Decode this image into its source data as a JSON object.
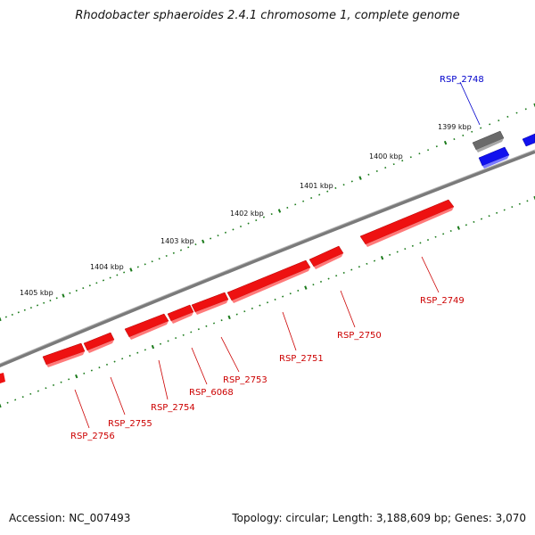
{
  "title": "Rhodobacter sphaeroides 2.4.1 chromosome 1, complete genome",
  "accession": "Accession: NC_007493",
  "summary": "Topology: circular; Length: 3,188,609 bp; Genes: 3,070",
  "colors": {
    "backbone": "#808080",
    "tick": "#1a7a1a",
    "forward_gene": "#ee0000",
    "reverse_gene_red": "#ee0000",
    "gray_gene": "#666666",
    "blue_gene": "#0000ee",
    "label_red": "#cc0000",
    "label_blue": "#0000cc"
  },
  "scale_labels": [
    {
      "kbp": 1399,
      "text": "1399 kbp"
    },
    {
      "kbp": 1400,
      "text": "1400 kbp"
    },
    {
      "kbp": 1401,
      "text": "1401 kbp"
    },
    {
      "kbp": 1402,
      "text": "1402 kbp"
    },
    {
      "kbp": 1403,
      "text": "1403 kbp"
    },
    {
      "kbp": 1404,
      "text": "1404 kbp"
    },
    {
      "kbp": 1405,
      "text": "1405 kbp"
    }
  ],
  "gene_labels": [
    {
      "id": "RSP_2748",
      "text": "RSP_2748",
      "color": "blue"
    },
    {
      "id": "RSP_2749",
      "text": "RSP_2749",
      "color": "red"
    },
    {
      "id": "RSP_2750",
      "text": "RSP_2750",
      "color": "red"
    },
    {
      "id": "RSP_2751",
      "text": "RSP_2751",
      "color": "red"
    },
    {
      "id": "RSP_2753",
      "text": "RSP_2753",
      "color": "red"
    },
    {
      "id": "RSP_6068",
      "text": "RSP_6068",
      "color": "red"
    },
    {
      "id": "RSP_2754",
      "text": "RSP_2754",
      "color": "red"
    },
    {
      "id": "RSP_2755",
      "text": "RSP_2755",
      "color": "red"
    },
    {
      "id": "RSP_2756",
      "text": "RSP_2756",
      "color": "red"
    }
  ]
}
